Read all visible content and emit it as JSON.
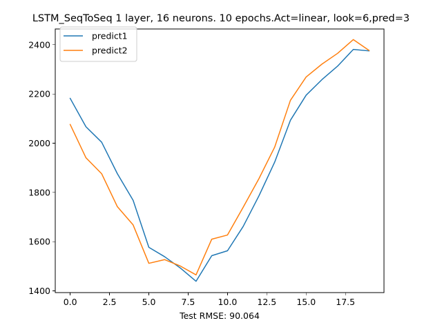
{
  "chart_data": {
    "type": "line",
    "title": "LSTM_SeqToSeq 1 layer, 16 neurons. 10 epochs.Act=linear, look=6,pred=3",
    "xlabel": "Test RMSE: 90.064",
    "ylabel": "",
    "x": [
      0,
      1,
      2,
      3,
      4,
      5,
      6,
      7,
      8,
      9,
      10,
      11,
      12,
      13,
      14,
      15,
      16,
      17,
      18,
      19
    ],
    "xlim": [
      -0.95,
      19.95
    ],
    "ylim": [
      1393,
      2464
    ],
    "xticks": [
      0.0,
      2.5,
      5.0,
      7.5,
      10.0,
      12.5,
      15.0,
      17.5
    ],
    "xtick_labels": [
      "0.0",
      "2.5",
      "5.0",
      "7.5",
      "10.0",
      "12.5",
      "15.0",
      "17.5"
    ],
    "yticks": [
      1400,
      1600,
      1800,
      2000,
      2200,
      2400
    ],
    "ytick_labels": [
      "1400",
      "1600",
      "1800",
      "2000",
      "2200",
      "2400"
    ],
    "grid": false,
    "legend_position": "upper-left",
    "series": [
      {
        "name": "predict1",
        "color": "#1f77b4",
        "values": [
          2182,
          2067,
          2004,
          1876,
          1768,
          1577,
          1539,
          1493,
          1439,
          1543,
          1563,
          1662,
          1786,
          1923,
          2093,
          2195,
          2258,
          2313,
          2381,
          2375
        ]
      },
      {
        "name": "predict2",
        "color": "#ff7f0e",
        "values": [
          2076,
          1941,
          1876,
          1742,
          1668,
          1512,
          1527,
          1501,
          1465,
          1610,
          1627,
          1740,
          1856,
          1984,
          2174,
          2269,
          2321,
          2365,
          2421,
          2377
        ]
      }
    ]
  }
}
